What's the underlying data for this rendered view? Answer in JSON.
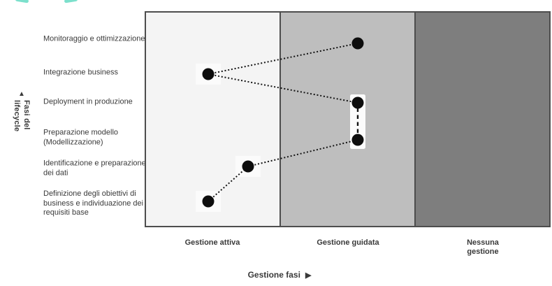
{
  "logo": {
    "color": "#7ce0cc"
  },
  "y_axis": {
    "arrow_icon": "▲",
    "title_line1": "Fasi del",
    "title_line2": "lifecycle"
  },
  "x_axis": {
    "title": "Gestione fasi",
    "arrow_icon": "▶"
  },
  "chart_data": {
    "type": "scatter",
    "title": "",
    "xlabel": "Gestione fasi",
    "ylabel": "Fasi del lifecycle",
    "x_categories": [
      "Gestione attiva",
      "Gestione guidata",
      "Nessuna gestione"
    ],
    "y_categories_top_to_bottom": [
      "Monitoraggio e ottimizzazione",
      "Integrazione business",
      "Deployment in produzione",
      "Preparazione modello (Modellizzazione)",
      "Identificazione e preparazione dei dati",
      "Definizione degli obiettivi di business e individuazione dei requisiti base"
    ],
    "bands": [
      {
        "label": "Gestione attiva",
        "color": "#f4f4f4"
      },
      {
        "label": "Gestione guidata",
        "color": "#bebebe"
      },
      {
        "label": "Nessuna gestione",
        "color": "#7e7e7e"
      }
    ],
    "points": [
      {
        "phase": "Definizione degli obiettivi di business e individuazione dei requisiti base",
        "column": "Gestione attiva",
        "px": [
          298,
          288
        ]
      },
      {
        "phase": "Identificazione e preparazione dei dati",
        "column": "Gestione attiva",
        "px": [
          355,
          238
        ]
      },
      {
        "phase": "Preparazione modello (Modellizzazione)",
        "column": "Gestione guidata",
        "px": [
          512,
          200
        ]
      },
      {
        "phase": "Deployment in produzione",
        "column": "Gestione guidata",
        "px": [
          512,
          147
        ]
      },
      {
        "phase": "Integrazione business",
        "column": "Gestione attiva",
        "px": [
          298,
          106
        ]
      },
      {
        "phase": "Monitoraggio e ottimizzazione",
        "column": "Gestione guidata",
        "px": [
          512,
          62
        ]
      }
    ],
    "connections": [
      {
        "from": 0,
        "to": 1,
        "style": "dotted"
      },
      {
        "from": 1,
        "to": 2,
        "style": "dotted"
      },
      {
        "from": 2,
        "to": 3,
        "style": "dashed",
        "highlight": true
      },
      {
        "from": 3,
        "to": 4,
        "style": "dotted"
      },
      {
        "from": 4,
        "to": 5,
        "style": "dotted"
      }
    ],
    "colors": {
      "point": "#0d0d0d",
      "line": "#141414",
      "border": "#4d4d4d",
      "highlight_box": "#fbfbfb"
    },
    "legend": null,
    "grid": false
  }
}
